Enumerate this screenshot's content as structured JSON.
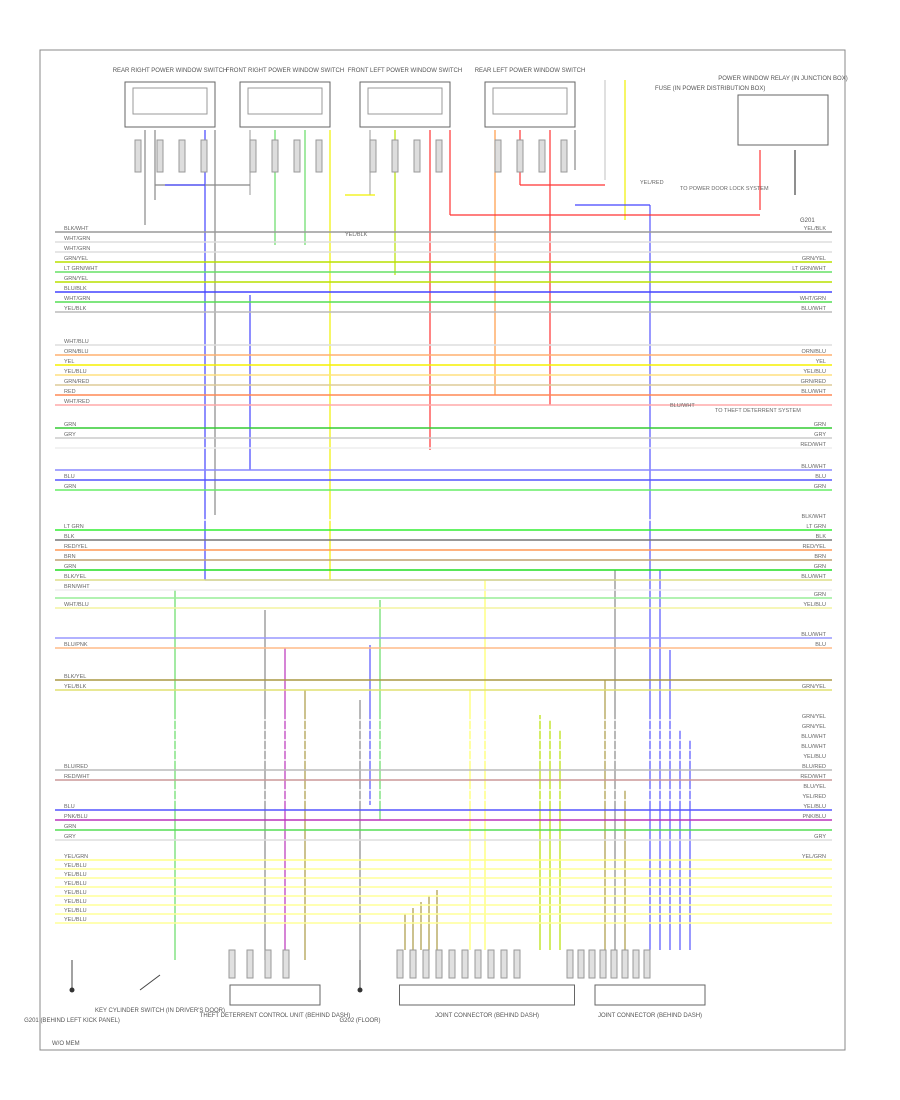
{
  "footer": "W/O MEM",
  "top_components": [
    {
      "label": "REAR RIGHT POWER WINDOW SWITCH"
    },
    {
      "label": "FRONT RIGHT POWER WINDOW SWITCH"
    },
    {
      "label": "FRONT LEFT POWER WINDOW SWITCH"
    },
    {
      "label": "REAR LEFT POWER WINDOW SWITCH"
    }
  ],
  "fuse_note": "FUSE (IN POWER DISTRIBUTION BOX)",
  "relay": {
    "label": "POWER WINDOW RELAY (IN JUNCTION BOX)",
    "ground": "G201"
  },
  "notes": [
    "YEL/BLK",
    "YEL/RED",
    "TO POWER DOOR LOCK SYSTEM",
    "BLU/WHT",
    "TO THEFT DETERRENT SYSTEM"
  ],
  "wires": [
    [
      {
        "left": "BLK/WHT",
        "right": "YEL/BLK",
        "color": "#9a9a9a"
      },
      {
        "left": "WHT/GRN",
        "right": "",
        "color": "#dddddd"
      },
      {
        "left": "WHT/GRN",
        "right": "",
        "color": "#dddddd"
      },
      {
        "left": "GRN/YEL",
        "right": "GRN/YEL",
        "color": "#b8e000"
      },
      {
        "left": "LT GRN/WHT",
        "right": "LT GRN/WHT",
        "color": "#66e066"
      },
      {
        "left": "GRN/YEL",
        "right": "",
        "color": "#b8e000"
      },
      {
        "left": "BLU/BLK",
        "right": "",
        "color": "#4444ff"
      },
      {
        "left": "WHT/GRN",
        "right": "WHT/GRN",
        "color": "#55dd55"
      },
      {
        "left": "YEL/BLK",
        "right": "BLU/WHT",
        "color": "#bbbbbb"
      }
    ],
    [
      {
        "left": "WHT/BLU",
        "right": "",
        "color": "#dddddd"
      },
      {
        "left": "ORN/BLU",
        "right": "ORN/BLU",
        "color": "#ffb070"
      },
      {
        "left": "YEL",
        "right": "YEL",
        "color": "#f5f000"
      },
      {
        "left": "YEL/BLU",
        "right": "YEL/BLU",
        "color": "#ffe080"
      },
      {
        "left": "GRN/RED",
        "right": "GRN/RED",
        "color": "#ddcc99"
      },
      {
        "left": "RED",
        "right": "BLU/WHT",
        "color": "#ff8855"
      },
      {
        "left": "WHT/RED",
        "right": "",
        "color": "#ffaaaa"
      }
    ],
    [
      {
        "left": "GRN",
        "right": "GRN",
        "color": "#33cc33"
      },
      {
        "left": "GRY",
        "right": "GRY",
        "color": "#cccccc"
      },
      {
        "left": "",
        "right": "RED/WHT",
        "color": "#eeeeee"
      }
    ],
    [
      {
        "left": "",
        "right": "BLU/WHT",
        "color": "#8888ff"
      },
      {
        "left": "BLU",
        "right": "BLU",
        "color": "#5555ff"
      },
      {
        "left": "GRN",
        "right": "GRN",
        "color": "#66ee66"
      }
    ],
    [
      {
        "left": "",
        "right": "BLK/WHT",
        "color": "#ffffff"
      },
      {
        "left": "LT GRN",
        "right": "LT GRN",
        "color": "#33ee33"
      },
      {
        "left": "BLK",
        "right": "BLK",
        "color": "#777777"
      },
      {
        "left": "RED/YEL",
        "right": "RED/YEL",
        "color": "#ff9955"
      },
      {
        "left": "BRN",
        "right": "BRN",
        "color": "#c0a070"
      },
      {
        "left": "GRN",
        "right": "GRN",
        "color": "#22dd22"
      },
      {
        "left": "BLK/YEL",
        "right": "BLU/WHT",
        "color": "#dddd88"
      },
      {
        "left": "BRN/WHT",
        "right": "",
        "color": "#eeeeee"
      }
    ],
    [
      {
        "left": "",
        "right": "GRN",
        "color": "#99ee99"
      },
      {
        "left": "WHT/BLU",
        "right": "YEL/BLU",
        "color": "#f4f4a0"
      }
    ],
    [
      {
        "left": "",
        "right": "BLU/WHT",
        "color": "#9999ff"
      },
      {
        "left": "BLU/PNK",
        "right": "BLU",
        "color": "#ffbb88"
      }
    ],
    [
      {
        "left": "BLK/YEL",
        "right": "",
        "color": "#aa9944"
      },
      {
        "left": "YEL/BLK",
        "right": "GRN/YEL",
        "color": "#e0e070"
      }
    ],
    [
      {
        "left": "",
        "right": "GRN/YEL",
        "color": "#ffffff"
      },
      {
        "left": "",
        "right": "GRN/YEL",
        "color": "#ffffff"
      },
      {
        "left": "",
        "right": "BLU/WHT",
        "color": "#ffffff"
      },
      {
        "left": "",
        "right": "BLU/WHT",
        "color": "#ffffff"
      },
      {
        "left": "",
        "right": "YEL/BLU",
        "color": "#ffffff"
      }
    ],
    [
      {
        "left": "BLU/RED",
        "right": "BLU/RED",
        "color": "#bbbbbb"
      },
      {
        "left": "RED/WHT",
        "right": "RED/WHT",
        "color": "#cc9999"
      },
      {
        "left": "",
        "right": "BLU/YEL",
        "color": "#ffffff"
      },
      {
        "left": "",
        "right": "YEL/RED",
        "color": "#ffffff"
      },
      {
        "left": "BLU",
        "right": "YEL/BLU",
        "color": "#5555ff"
      },
      {
        "left": "PNK/BLU",
        "right": "PNK/BLU",
        "color": "#bb33bb"
      },
      {
        "left": "GRN",
        "right": "",
        "color": "#55dd55"
      },
      {
        "left": "GRY",
        "right": "GRY",
        "color": "#dddddd"
      }
    ],
    [
      {
        "left": "YEL/GRN",
        "right": "YEL/GRN",
        "color": "#ffff88"
      },
      {
        "left": "YEL/BLU",
        "right": "",
        "color": "#ffff99"
      },
      {
        "left": "YEL/BLU",
        "right": "",
        "color": "#ffff99"
      },
      {
        "left": "YEL/BLU",
        "right": "",
        "color": "#ffff99"
      },
      {
        "left": "YEL/BLU",
        "right": "",
        "color": "#ffff99"
      },
      {
        "left": "YEL/BLU",
        "right": "",
        "color": "#ffff99"
      },
      {
        "left": "YEL/BLU",
        "right": "",
        "color": "#ffff99"
      },
      {
        "left": "YEL/BLU",
        "right": "",
        "color": "#ffff99"
      }
    ]
  ],
  "bottom_components": [
    {
      "label": "G201 (BEHIND LEFT KICK PANEL)"
    },
    {
      "label": "KEY CYLINDER SWITCH (IN DRIVER'S DOOR)"
    },
    {
      "label": "THEFT DETERRENT CONTROL UNIT (BEHIND DASH)"
    },
    {
      "label": "G202 (FLOOR)"
    },
    {
      "label": "JOINT CONNECTOR (BEHIND DASH)"
    },
    {
      "label": "JOINT CONNECTOR (BEHIND DASH)"
    }
  ]
}
